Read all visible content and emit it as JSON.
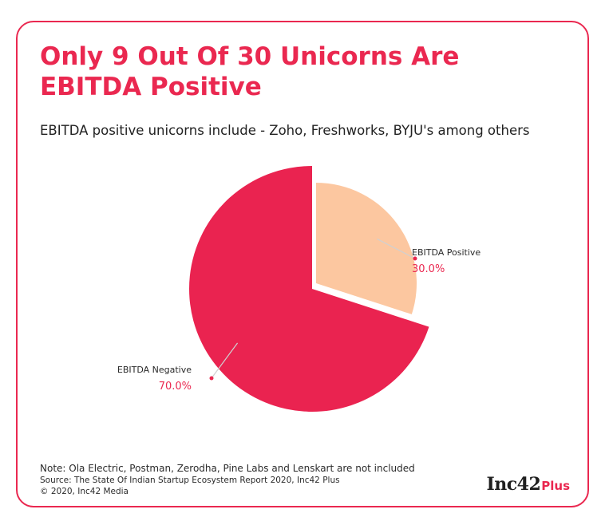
{
  "title": "Only 9 Out Of 30 Unicorns Are EBITDA Positive",
  "subtitle": "EBITDA positive unicorns include - Zoho, Freshworks, BYJU's among others",
  "chart_data": {
    "type": "pie",
    "categories": [
      "EBITDA Positive",
      "EBITDA Negative"
    ],
    "values": [
      30.0,
      70.0
    ],
    "value_labels": [
      "30.0%",
      "70.0%"
    ],
    "colors": [
      "#fcc7a0",
      "#ea2350"
    ],
    "exploded": [
      "EBITDA Positive"
    ],
    "start_angle": "12 o'clock, clockwise",
    "legend": "none"
  },
  "footer": {
    "note": "Note: Ola Electric, Postman, Zerodha, Pine Labs and Lenskart are not included",
    "source": "Source: The State Of Indian Startup Ecosystem Report 2020, Inc42 Plus",
    "copyright": "© 2020, Inc42 Media"
  },
  "logo": {
    "brand": "Inc42",
    "plus": "Plus"
  },
  "colors": {
    "accent": "#ea2850",
    "label_value": "#ea2850",
    "text": "#222222"
  }
}
